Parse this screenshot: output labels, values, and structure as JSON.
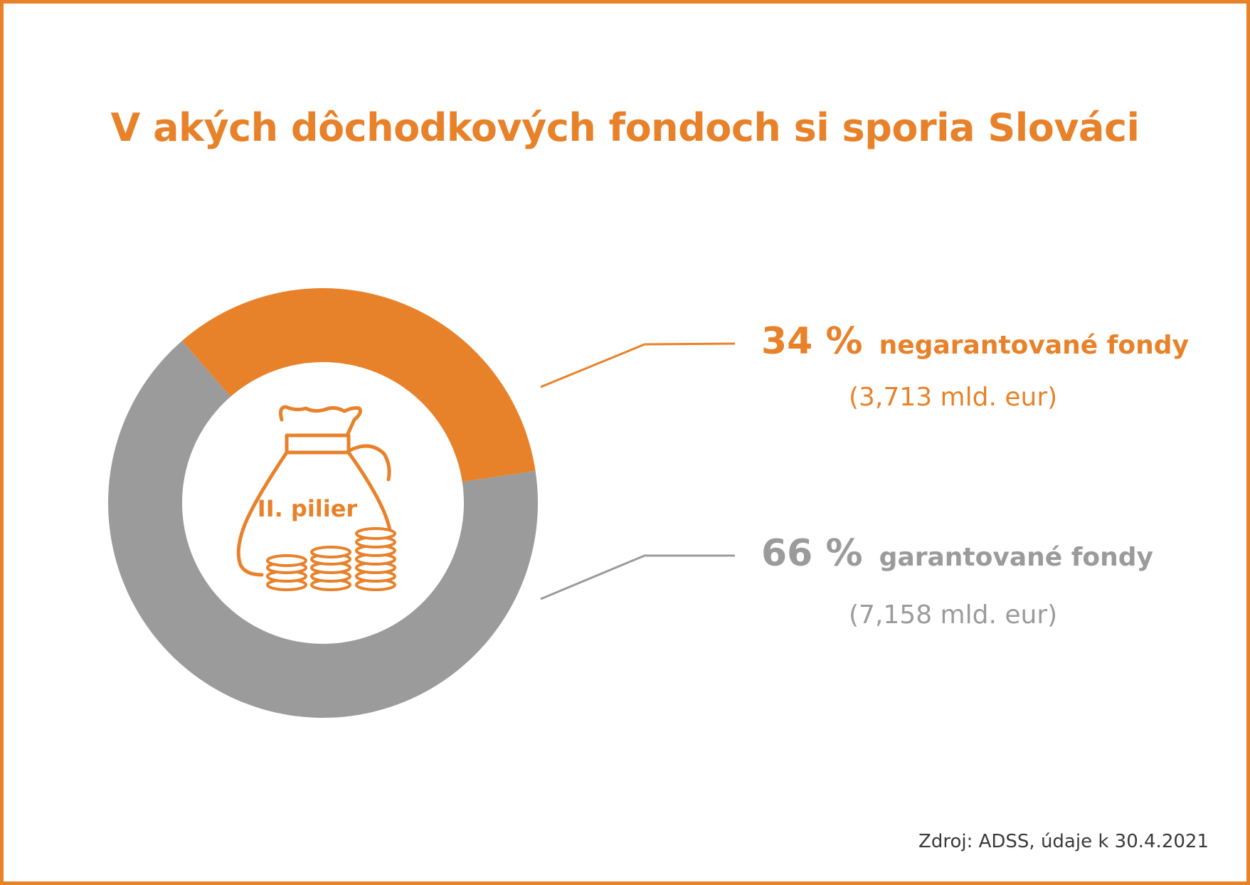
{
  "title": "V akých dôchodkových fondoch si sporia Slováci",
  "center_label": "II. pilier",
  "source": "Zdroj: ADSS, údaje k 30.4.2021",
  "chart_data": {
    "type": "pie",
    "donut": true,
    "title": "V akých dôchodkových fondoch si sporia Slováci",
    "series": [
      {
        "name": "negarantované fondy",
        "percent": 34,
        "percent_label": "34 %",
        "amount_label": "(3,713 mld. eur)",
        "value": 3.713,
        "color": "#e8822a"
      },
      {
        "name": "garantované fondy",
        "percent": 66,
        "percent_label": "66 %",
        "amount_label": "(7,158 mld. eur)",
        "value": 7.158,
        "color": "#9b9b9b"
      }
    ]
  },
  "colors": {
    "accent": "#e8822a",
    "secondary": "#9b9b9b",
    "frame": "#e8822a"
  },
  "icons": [
    "money-bag-icon",
    "coin-stack-icon"
  ]
}
